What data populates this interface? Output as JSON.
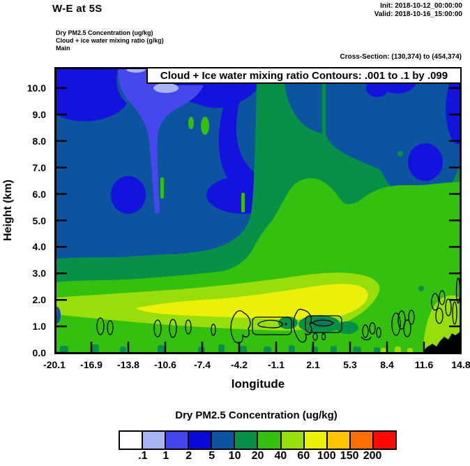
{
  "header": {
    "title": "W-E at 5S",
    "init_label": "Init: 2018-10-12_00:00:00",
    "valid_label": "Valid: 2018-10-16_15:00:00",
    "field_lines": [
      "Dry PM2.5 Concentration   (ug/kg)",
      "Cloud + ice water mixing ratio   (g/kg)",
      "Main"
    ],
    "cross_section_label": "Cross-Section: (130,374) to (454,374)"
  },
  "plot": {
    "contour_box_label": "Cloud + Ice water mixing ratio Contours: .001 to .1 by .099",
    "y_axis": {
      "label": "Height (km)",
      "tick_labels": [
        "10.0",
        "9.0",
        "8.0",
        "7.0",
        "6.0",
        "5.0",
        "4.0",
        "3.0",
        "2.0",
        "1.0",
        "0.0"
      ]
    },
    "x_axis": {
      "label": "longitude",
      "tick_labels": [
        "-20.1",
        "-16.9",
        "-13.8",
        "-10.6",
        "-7.4",
        "-4.2",
        "-1.1",
        "2.1",
        "5.3",
        "8.4",
        "11.6",
        "14.8"
      ]
    }
  },
  "colorbar": {
    "title": "Dry PM2.5 Concentration  (ug/kg)",
    "boundary_labels": [
      ".1",
      "1",
      "2",
      "5",
      "10",
      "20",
      "40",
      "60",
      "100",
      "150",
      "200"
    ],
    "cell_colors": [
      "#ffffff",
      "#abb4f2",
      "#4545ee",
      "#0a0ad8",
      "#0d54a0",
      "#089048",
      "#33c00e",
      "#97de0b",
      "#ebf00b",
      "#ffc400",
      "#ff6e00",
      "#fa0a00"
    ]
  },
  "chart_data": {
    "type": "heatmap",
    "title": "W-E at 5S",
    "xlabel": "longitude",
    "ylabel": "Height (km)",
    "xlim": [
      -20.1,
      14.8
    ],
    "ylim": [
      0,
      10.9
    ],
    "x_ticks": [
      -20.1,
      -16.9,
      -13.8,
      -10.6,
      -7.4,
      -4.2,
      -1.1,
      2.1,
      5.3,
      8.4,
      11.6,
      14.8
    ],
    "y_ticks": [
      0,
      1,
      2,
      3,
      4,
      5,
      6,
      7,
      8,
      9,
      10
    ],
    "grid": false,
    "fill_field": "Dry PM2.5 Concentration (ug/kg)",
    "fill_level_boundaries": [
      0.1,
      1,
      2,
      5,
      10,
      20,
      40,
      60,
      100,
      150,
      200
    ],
    "fill_colors": [
      "#ffffff",
      "#abb4f2",
      "#4545ee",
      "#0a0ad8",
      "#0d54a0",
      "#089048",
      "#33c00e",
      "#97de0b",
      "#ebf00b",
      "#ffc400",
      "#ff6e00",
      "#fa0a00"
    ],
    "contour_field": "Cloud + Ice water mixing ratio (g/kg)",
    "contour_levels": [
      0.001,
      0.1
    ],
    "contour_interval": 0.099,
    "init_time": "2018-10-12_00:00:00",
    "valid_time": "2018-10-16_15:00:00",
    "cross_section_gridpoints": {
      "from": [
        130,
        374
      ],
      "to": [
        454,
        374
      ]
    },
    "features": [
      "PM2.5 2-5 ug/kg (bright blue) fills the upper-left quadrant above ~7 km from -20 to about -5 longitude",
      "Minimum plume aloft near -14 to -11 longitude: 1-2 ug/kg (violet) with 0.1-1 ug/kg (periwinkle) core near 10.5 km",
      "5-10 ug/kg (dark steel blue) background through mid/upper troposphere, with 2-5 ug/kg pockets near 6 km at -14 and -6 longitude and near the right edge",
      "10-20 ug/kg (dark green) plumes rise to plot top near -1 to +2 longitude and cap a layer near 3-3.5 km on the left half",
      "20-40 ug/kg (green) dominates below ~3 km and extends up to ~6.5 km on the eastern half",
      "Maximum band 60-100 ug/kg (yellow) centered near 2-2.5 km from about -13 to +2 longitude, wrapped by 40-60 ug/kg (yellow-green)",
      "10-20 ug/kg pocket near 1 km around +1 to +3 longitude",
      "Cloud + ice mixing-ratio contour cells (.001 and .1 g/kg) scattered between 0.5 and 1.5 km from -16 to +13 longitude",
      "Black terrain silhouette at bottom-right from ~12.5 to 14.8 longitude below ~0.9 km"
    ]
  }
}
